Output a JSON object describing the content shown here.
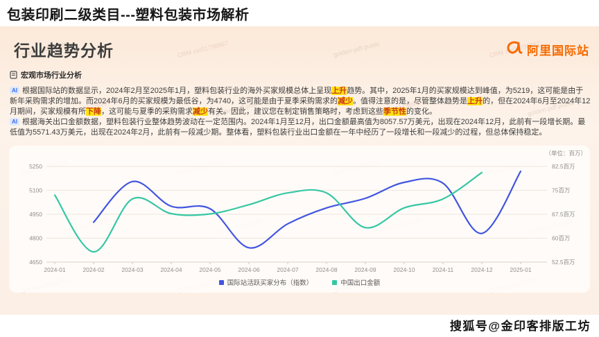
{
  "page_title": "包装印刷二级类目---塑料包装市场解析",
  "slide": {
    "header": {
      "title": "行业趋势分析",
      "logo_text": "阿里国际站"
    },
    "section": {
      "label": "宏观市场行业分析"
    },
    "ai_badge": "AI",
    "paragraphs": [
      {
        "segments": [
          {
            "t": "根据国际站的数据显示，2024年2月至2025年1月，塑料包装行业的海外买家规模总体上呈现"
          },
          {
            "t": "上升",
            "h": true
          },
          {
            "t": "趋势。其中，2025年1月的买家规模达到峰值，为5219，这可能是由于新年采购需求的增加。而2024年6月的买家规模为最低谷，为4740，这可能是由于夏季采购需求的"
          },
          {
            "t": "减少",
            "h": true
          },
          {
            "t": "。值得注意的是，尽管整体趋势是"
          },
          {
            "t": "上升",
            "h": true
          },
          {
            "t": "的，但在2024年6月至2024年12月期间，买家规模有所"
          },
          {
            "t": "下降",
            "h": true
          },
          {
            "t": "，这可能与夏季的采购需求"
          },
          {
            "t": "减少",
            "h": true
          },
          {
            "t": "有关。因此，建议您在制定销售策略时，考虑到这些"
          },
          {
            "t": "季节性",
            "h": true
          },
          {
            "t": "的变化。"
          }
        ]
      },
      {
        "segments": [
          {
            "t": "根据海关出口金额数据，塑料包装行业整体趋势波动在一定范围内。2024年1月至12月，出口金额最高值为8057.57万美元，出现在2024年12月，此前有一段增长期。最低值为5571.43万美元，出现在2024年2月，此前有一段减少期。整体看，塑料包装行业出口金额在一年中经历了一段增长和一段减少的过程，但总体保持稳定。"
          }
        ]
      }
    ]
  },
  "chart_data": {
    "type": "line",
    "categories": [
      "2024-01",
      "2024-02",
      "2024-03",
      "2024-04",
      "2024-05",
      "2024-06",
      "2024-07",
      "2024-08",
      "2024-09",
      "2024-10",
      "2024-11",
      "2024-12",
      "2025-01"
    ],
    "series": [
      {
        "name": "国际站活跃买家分布（指数）",
        "color": "#4155e0",
        "axis": "left",
        "values": [
          null,
          4900,
          5155,
          5000,
          4985,
          4740,
          4890,
          4990,
          5050,
          5150,
          5145,
          4830,
          5219
        ]
      },
      {
        "name": "中国出口金额",
        "color": "#35c7a4",
        "axis": "right",
        "values": [
          73.5,
          55.71,
          72.3,
          67.7,
          67.6,
          70.5,
          74.2,
          74.2,
          63.3,
          69.5,
          72.3,
          80.58,
          null
        ]
      }
    ],
    "left_axis": {
      "ticks": [
        4650,
        4800,
        4950,
        5100,
        5250
      ],
      "min": 4650,
      "max": 5250
    },
    "right_axis": {
      "unit_label": "（单位：百万）",
      "ticks": [
        "52.5百万",
        "60百万",
        "67.5百万",
        "75百万",
        "82.5百万"
      ],
      "min": 52.5,
      "max": 82.5
    },
    "legend_position": "bottom",
    "grid": true
  },
  "watermarks": {
    "texts": [
      "golden-pdf-public",
      "CRM zxr01798967"
    ]
  },
  "footer": {
    "sohu": "搜狐号@金印客排版工坊"
  }
}
